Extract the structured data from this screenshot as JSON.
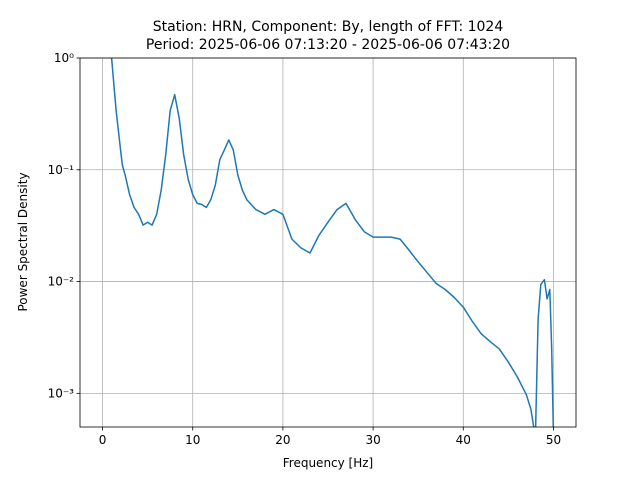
{
  "chart_data": {
    "type": "line",
    "title": "Station: HRN, Component: By, length of FFT: 1024",
    "subtitle": "Period: 2025-06-06 07:13:20 - 2025-06-06 07:43:20",
    "xlabel": "Frequency [Hz]",
    "ylabel": "Power Spectral Density",
    "log_y": true,
    "grid": true,
    "xlim": [
      -2.5,
      52.5
    ],
    "ylim": [
      0.0005,
      1
    ],
    "xticks": [
      0,
      10,
      20,
      30,
      40,
      50
    ],
    "yticks": [
      {
        "value": 1,
        "label": "10⁰"
      },
      {
        "value": 0.1,
        "label": "10⁻¹"
      },
      {
        "value": 0.01,
        "label": "10⁻²"
      },
      {
        "value": 0.001,
        "label": "10⁻³"
      }
    ],
    "series": [
      {
        "name": "By",
        "color": "#1f77b4",
        "x": [
          1,
          1.5,
          2,
          2.2,
          2.5,
          3,
          3.5,
          4,
          4.5,
          5,
          5.5,
          6,
          6.5,
          7,
          7.5,
          8,
          8.5,
          9,
          9.5,
          10,
          10.5,
          11,
          11.5,
          12,
          12.5,
          13,
          13.5,
          14,
          14.5,
          15,
          15.5,
          16,
          17,
          18,
          19,
          20,
          21,
          22,
          23,
          24,
          25,
          26,
          27,
          28,
          29,
          30,
          31,
          32,
          33,
          34,
          35,
          36,
          37,
          38,
          39,
          40,
          41,
          42,
          43,
          44,
          45,
          46,
          47,
          47.5,
          48,
          48.3,
          48.6,
          49,
          49.3,
          49.6,
          49.8,
          50
        ],
        "values": [
          1,
          0.34,
          0.15,
          0.11,
          0.09,
          0.06,
          0.046,
          0.04,
          0.032,
          0.034,
          0.032,
          0.04,
          0.066,
          0.136,
          0.34,
          0.47,
          0.29,
          0.136,
          0.082,
          0.06,
          0.05,
          0.049,
          0.046,
          0.054,
          0.073,
          0.123,
          0.15,
          0.185,
          0.15,
          0.09,
          0.066,
          0.054,
          0.044,
          0.04,
          0.044,
          0.04,
          0.024,
          0.02,
          0.018,
          0.026,
          0.034,
          0.044,
          0.05,
          0.036,
          0.028,
          0.025,
          0.025,
          0.025,
          0.024,
          0.019,
          0.015,
          0.012,
          0.0096,
          0.0085,
          0.0072,
          0.0059,
          0.0044,
          0.0034,
          0.0029,
          0.0025,
          0.0019,
          0.0014,
          0.00097,
          0.00072,
          0.0004,
          0.0046,
          0.0094,
          0.0104,
          0.007,
          0.0085,
          0.0025,
          0.0004
        ]
      }
    ]
  }
}
